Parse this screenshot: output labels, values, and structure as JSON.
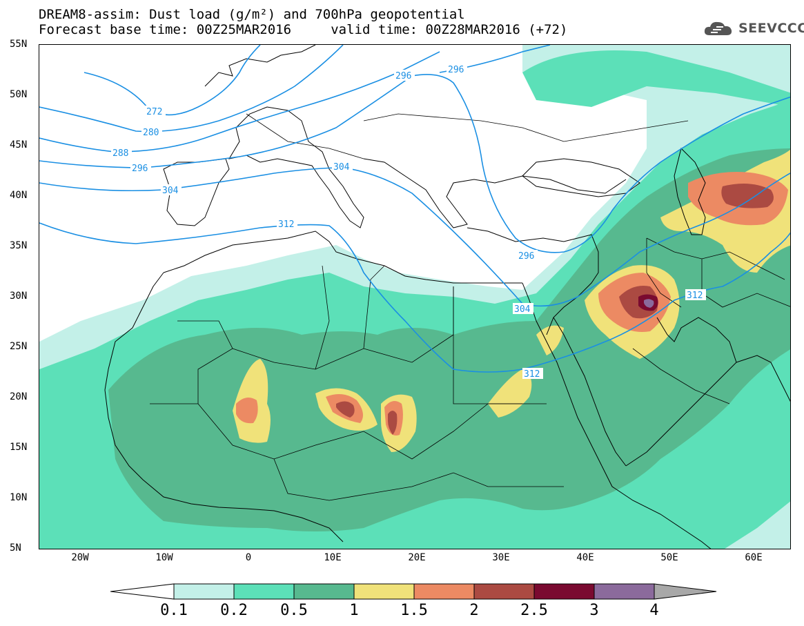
{
  "title": {
    "line1": "DREAM8-assim: Dust load (g/m²) and 700hPa geopotential",
    "line2": "Forecast base time: 00Z25MAR2016     valid time: 00Z28MAR2016 (+72)"
  },
  "logo": {
    "text": "SEEVCCC",
    "icon": "cloud-icon"
  },
  "lat_labels": [
    "55N",
    "50N",
    "45N",
    "40N",
    "35N",
    "30N",
    "25N",
    "20N",
    "15N",
    "10N",
    "5N"
  ],
  "lon_labels": [
    "20W",
    "10W",
    "0",
    "10E",
    "20E",
    "30E",
    "40E",
    "50E",
    "60E"
  ],
  "contour_labels": [
    "272",
    "280",
    "288",
    "296",
    "304",
    "312",
    "296",
    "296",
    "304",
    "312",
    "296",
    "304",
    "312"
  ],
  "colorbar": {
    "labels": [
      "0.1",
      "0.2",
      "0.5",
      "1",
      "1.5",
      "2",
      "2.5",
      "3",
      "4"
    ],
    "colors": [
      "#c3f0e8",
      "#5ce0b8",
      "#57b98f",
      "#f0e27a",
      "#ec8a63",
      "#ab4a42",
      "#7a0a30",
      "#8b6a9c"
    ],
    "under_color": "#ffffff",
    "over_color": "#a8a8a8"
  },
  "colors": {
    "contour": "#1a8fe3",
    "border": "#000000"
  }
}
